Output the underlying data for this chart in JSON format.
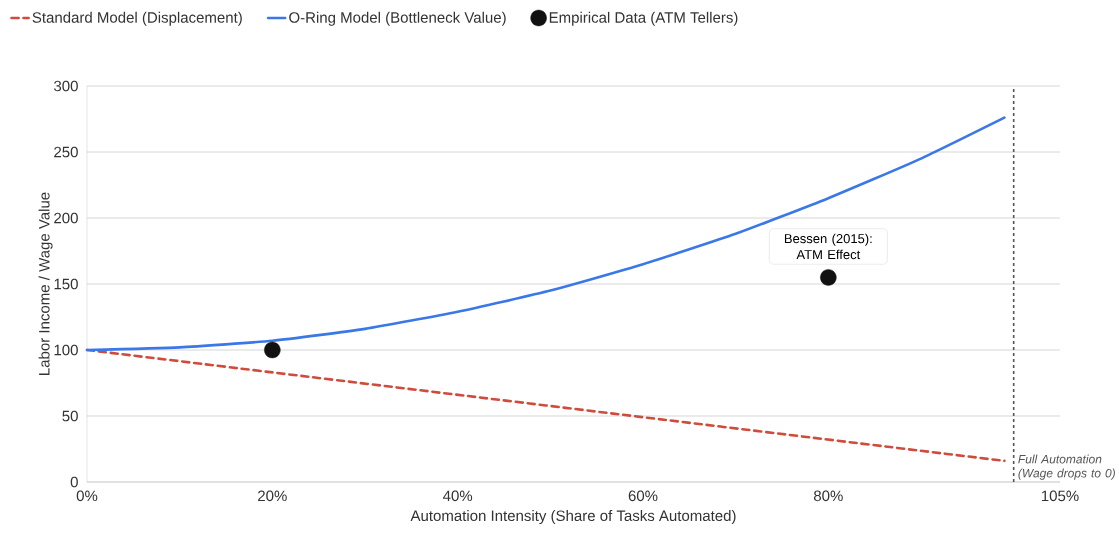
{
  "chart_data": {
    "type": "line",
    "xlabel": "Automation Intensity (Share of Tasks Automated)",
    "ylabel": "Labor Income / Wage Value",
    "xlim": [
      0,
      105
    ],
    "ylim": [
      0,
      300
    ],
    "xticks": [
      {
        "value": 0,
        "label": "0%"
      },
      {
        "value": 20,
        "label": "20%"
      },
      {
        "value": 40,
        "label": "40%"
      },
      {
        "value": 60,
        "label": "60%"
      },
      {
        "value": 80,
        "label": "80%"
      },
      {
        "value": 105,
        "label": "105%"
      }
    ],
    "yticks": [
      0,
      50,
      100,
      150,
      200,
      250,
      300
    ],
    "grid": "y",
    "legend": "top",
    "series": [
      {
        "name": "Standard Model (Displacement)",
        "type": "line",
        "line_style": "dashed",
        "color": "#d14b3c",
        "x": [
          0,
          99
        ],
        "values": [
          100,
          16
        ]
      },
      {
        "name": "O-Ring Model (Bottleneck Value)",
        "type": "line",
        "line_style": "solid",
        "color": "#3b78e7",
        "x": [
          0,
          10,
          20,
          30,
          40,
          50,
          60,
          70,
          80,
          90,
          99
        ],
        "values": [
          100,
          102,
          107,
          116,
          129,
          145,
          165,
          188,
          215,
          245,
          276
        ]
      },
      {
        "name": "Empirical Data (ATM Tellers)",
        "type": "scatter",
        "marker": "circle",
        "color": "#111111",
        "x": [
          20,
          80
        ],
        "values": [
          100,
          155
        ]
      }
    ],
    "annotations": [
      {
        "text": "Bessen (2015): ATM Effect",
        "x": 80,
        "y": 155
      }
    ],
    "ref_lines": [
      {
        "axis": "x",
        "value": 100,
        "label": "Full Automation (Wage drops to 0)",
        "color": "#555555",
        "line_style": "dotted"
      }
    ]
  }
}
